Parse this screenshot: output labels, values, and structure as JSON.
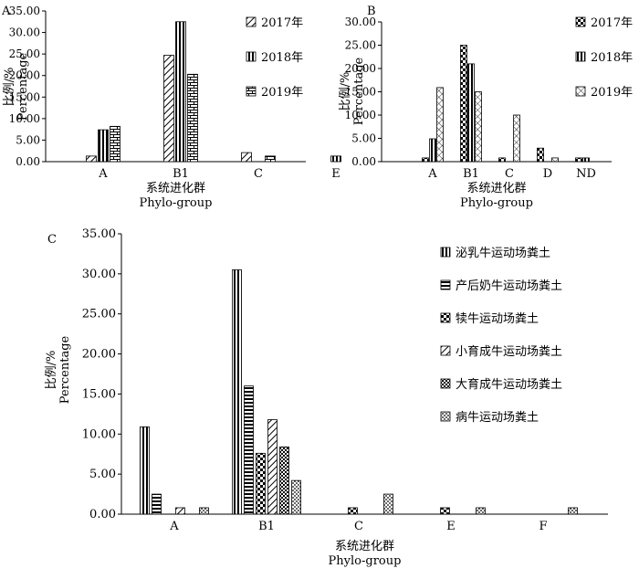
{
  "chart_data": [
    {
      "type": "bar",
      "panel_label": "A",
      "categories": [
        "A",
        "B1",
        "C",
        "E"
      ],
      "series": [
        {
          "name": "2017年",
          "pattern": "diag-hatch",
          "values": [
            1.3,
            24.7,
            2.1,
            0
          ]
        },
        {
          "name": "2018年",
          "pattern": "vertical-stripes",
          "values": [
            7.4,
            32.5,
            0,
            1.3
          ]
        },
        {
          "name": "2019年",
          "pattern": "brick",
          "values": [
            8.2,
            20.3,
            1.3,
            0
          ]
        }
      ],
      "xlabel": "系统进化群",
      "xlabel2": "Phylo-group",
      "ylabel": "比例/%",
      "ylabel2": "Percentage",
      "ylim": [
        0,
        35
      ],
      "yticks": [
        "0.00",
        "5.00",
        "10.00",
        "15.00",
        "20.00",
        "25.00",
        "30.00",
        "35.00"
      ],
      "grid": false,
      "legend_position": "right"
    },
    {
      "type": "bar",
      "panel_label": "B",
      "categories": [
        "A",
        "B1",
        "C",
        "D",
        "ND"
      ],
      "series": [
        {
          "name": "2017年",
          "pattern": "checker",
          "values": [
            0.8,
            25.0,
            0.8,
            2.9,
            0.8
          ]
        },
        {
          "name": "2018年",
          "pattern": "vertical-stripes",
          "values": [
            4.9,
            21.0,
            0,
            0,
            0.8
          ]
        },
        {
          "name": "2019年",
          "pattern": "crosshatch",
          "values": [
            15.9,
            15.0,
            10.0,
            0.8,
            0
          ]
        }
      ],
      "xlabel": "系统进化群",
      "xlabel2": "Phylo-group",
      "ylabel": "比例/%",
      "ylabel2": "Percentage",
      "ylim": [
        0,
        30
      ],
      "yticks": [
        "0.00",
        "5.00",
        "10.00",
        "15.00",
        "20.00",
        "25.00",
        "30.00"
      ],
      "grid": false,
      "legend_position": "right"
    },
    {
      "type": "bar",
      "panel_label": "C",
      "categories": [
        "A",
        "B1",
        "C",
        "E",
        "F"
      ],
      "series": [
        {
          "name": "泌乳牛运动场粪土",
          "pattern": "vertical-stripes",
          "values": [
            10.9,
            30.5,
            0,
            0,
            0
          ]
        },
        {
          "name": "产后奶牛运动场粪土",
          "pattern": "horizontal-stripes",
          "values": [
            2.5,
            16.0,
            0,
            0,
            0
          ]
        },
        {
          "name": "犊牛运动场粪土",
          "pattern": "checker",
          "values": [
            0,
            7.6,
            0.8,
            0.8,
            0
          ]
        },
        {
          "name": "小育成牛运动场粪土",
          "pattern": "diag-hatch",
          "values": [
            0.8,
            11.8,
            0,
            0,
            0
          ]
        },
        {
          "name": "大育成牛运动场粪土",
          "pattern": "checker-dense",
          "values": [
            0,
            8.4,
            0,
            0,
            0
          ]
        },
        {
          "name": "病牛运动场粪土",
          "pattern": "dots",
          "values": [
            0.8,
            4.2,
            2.5,
            0.8,
            0.8
          ]
        }
      ],
      "xlabel": "系统进化群",
      "xlabel2": "Phylo-group",
      "ylabel": "比例/%",
      "ylabel2": "Percentage",
      "ylim": [
        0,
        35
      ],
      "yticks": [
        "0.00",
        "5.00",
        "10.00",
        "15.00",
        "20.00",
        "25.00",
        "30.00",
        "35.00"
      ],
      "grid": false,
      "legend_position": "right"
    }
  ]
}
